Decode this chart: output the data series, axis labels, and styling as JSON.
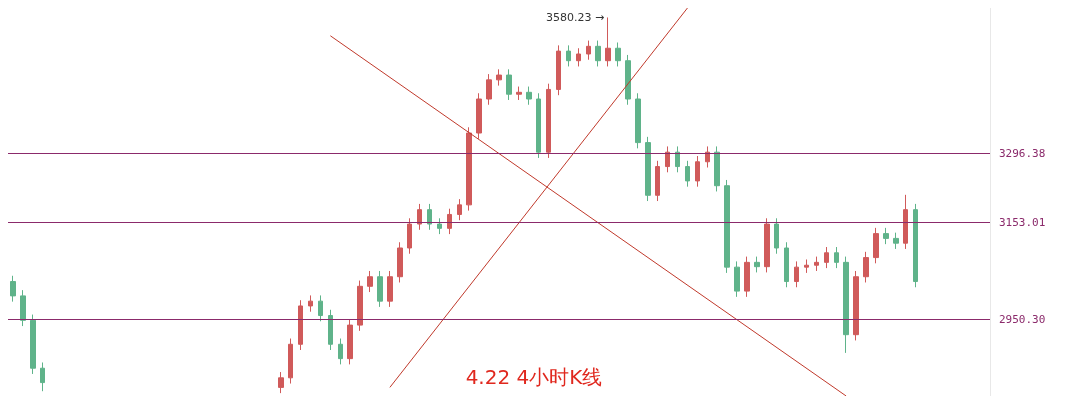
{
  "chart_data": {
    "type": "candlestick",
    "title": "4.22 4小时K线",
    "categories": [
      null,
      null,
      null,
      null,
      null,
      null,
      null,
      null,
      null,
      null,
      null,
      null,
      null,
      null,
      null,
      null,
      null,
      null,
      null,
      null,
      null,
      null,
      null,
      null,
      null,
      null,
      null,
      null,
      null,
      null,
      null,
      null,
      null,
      null,
      null,
      null,
      null,
      null,
      null,
      null,
      null,
      null,
      null,
      null,
      null,
      null,
      null,
      null,
      null,
      null,
      null,
      null,
      null,
      null,
      null,
      null,
      null,
      null,
      null,
      null,
      null,
      null,
      null,
      null,
      null,
      null,
      null,
      null,
      null,
      null,
      null,
      null,
      null,
      null,
      null,
      null,
      null,
      null,
      null,
      null,
      null,
      null,
      null,
      null,
      null,
      null,
      null,
      null,
      null,
      null,
      null,
      null,
      null,
      null,
      null,
      null,
      null,
      null,
      null
    ],
    "ohlc": [
      [
        3029,
        3041,
        2987,
        2999
      ],
      [
        2999,
        3011,
        2936,
        2948
      ],
      [
        2948,
        2960,
        2836,
        2848
      ],
      [
        2848,
        2860,
        2800,
        2818
      ],
      null,
      null,
      null,
      null,
      null,
      null,
      null,
      null,
      null,
      null,
      null,
      null,
      null,
      null,
      null,
      null,
      null,
      null,
      null,
      null,
      null,
      null,
      null,
      [
        2808,
        2840,
        2796,
        2828
      ],
      [
        2828,
        2910,
        2816,
        2898
      ],
      [
        2898,
        2990,
        2886,
        2978
      ],
      [
        2978,
        3000,
        2966,
        2988
      ],
      [
        2988,
        3000,
        2946,
        2958
      ],
      [
        2958,
        2970,
        2886,
        2898
      ],
      [
        2898,
        2910,
        2856,
        2868
      ],
      [
        2868,
        2950,
        2856,
        2938
      ],
      [
        2938,
        3031,
        2926,
        3019
      ],
      [
        3019,
        3051,
        3007,
        3039
      ],
      [
        3039,
        3051,
        2976,
        2988
      ],
      [
        2988,
        3051,
        2976,
        3039
      ],
      [
        3039,
        3111,
        3027,
        3099
      ],
      [
        3099,
        3161,
        3087,
        3149
      ],
      [
        3149,
        3191,
        3137,
        3179
      ],
      [
        3179,
        3191,
        3137,
        3149
      ],
      [
        3149,
        3161,
        3128,
        3140
      ],
      [
        3140,
        3181,
        3128,
        3169
      ],
      [
        3169,
        3201,
        3157,
        3189
      ],
      [
        3189,
        3351,
        3177,
        3339
      ],
      [
        3339,
        3422,
        3327,
        3410
      ],
      [
        3410,
        3462,
        3398,
        3450
      ],
      [
        3450,
        3472,
        3438,
        3460
      ],
      [
        3460,
        3472,
        3408,
        3420
      ],
      [
        3420,
        3436,
        3408,
        3424
      ],
      [
        3424,
        3436,
        3398,
        3410
      ],
      [
        3410,
        3422,
        3287,
        3299
      ],
      [
        3299,
        3442,
        3287,
        3430
      ],
      [
        3430,
        3522,
        3418,
        3510
      ],
      [
        3510,
        3522,
        3478,
        3490
      ],
      [
        3490,
        3516,
        3478,
        3504
      ],
      [
        3504,
        3532,
        3492,
        3520
      ],
      [
        3520,
        3532,
        3478,
        3490
      ],
      [
        3490,
        3580.23,
        3478,
        3516
      ],
      [
        3516,
        3528,
        3478,
        3490
      ],
      [
        3490,
        3502,
        3398,
        3410
      ],
      [
        3410,
        3422,
        3307,
        3319
      ],
      [
        3319,
        3331,
        3197,
        3209
      ],
      [
        3209,
        3281,
        3197,
        3269
      ],
      [
        3269,
        3311,
        3257,
        3299
      ],
      [
        3299,
        3311,
        3257,
        3269
      ],
      [
        3269,
        3281,
        3227,
        3239
      ],
      [
        3239,
        3291,
        3227,
        3279
      ],
      [
        3279,
        3311,
        3267,
        3299
      ],
      [
        3299,
        3311,
        3217,
        3229
      ],
      [
        3229,
        3241,
        3047,
        3059
      ],
      [
        3059,
        3071,
        2997,
        3009
      ],
      [
        3009,
        3081,
        2997,
        3069
      ],
      [
        3069,
        3081,
        3048,
        3060
      ],
      [
        3060,
        3161,
        3048,
        3149
      ],
      [
        3149,
        3161,
        3087,
        3099
      ],
      [
        3099,
        3111,
        3017,
        3029
      ],
      [
        3029,
        3071,
        3017,
        3059
      ],
      [
        3059,
        3075,
        3047,
        3063
      ],
      [
        3063,
        3081,
        3051,
        3069
      ],
      [
        3069,
        3101,
        3057,
        3089
      ],
      [
        3089,
        3101,
        3057,
        3069
      ],
      [
        3069,
        3081,
        2880,
        2918
      ],
      [
        2918,
        3051,
        2906,
        3039
      ],
      [
        3039,
        3091,
        3027,
        3079
      ],
      [
        3079,
        3141,
        3067,
        3129
      ],
      [
        3129,
        3141,
        3107,
        3119
      ],
      [
        3119,
        3131,
        3097,
        3109
      ],
      [
        3109,
        3210,
        3097,
        3179
      ],
      [
        3179,
        3191,
        3017,
        3029
      ],
      null,
      null,
      null,
      null,
      null,
      null,
      null
    ],
    "series": [
      {
        "type": "line",
        "color": "#c0392b",
        "values": [
          null,
          null,
          null,
          null,
          null,
          null,
          null,
          null,
          null,
          null,
          null,
          null,
          null,
          null,
          null,
          null,
          null,
          null,
          null,
          null,
          null,
          null,
          null,
          null,
          null,
          null,
          null,
          null,
          null,
          null,
          null,
          null,
          3542,
          null,
          null,
          null,
          null,
          null,
          null,
          null,
          null,
          null,
          null,
          null,
          null,
          null,
          null,
          null,
          null,
          null,
          null,
          null,
          null,
          null,
          null,
          null,
          null,
          null,
          null,
          null,
          null,
          null,
          null,
          null,
          null,
          null,
          null,
          null,
          null,
          null,
          null,
          null,
          null,
          null,
          null,
          null,
          null,
          null,
          null,
          null,
          null,
          null,
          null,
          null,
          2790,
          null,
          null,
          null,
          null,
          null,
          null,
          null,
          null,
          null,
          null,
          null,
          null,
          null,
          null
        ]
      },
      {
        "type": "line",
        "color": "#c0392b",
        "values": [
          null,
          null,
          null,
          null,
          null,
          null,
          null,
          null,
          null,
          null,
          null,
          null,
          null,
          null,
          null,
          null,
          null,
          null,
          null,
          null,
          null,
          null,
          null,
          null,
          null,
          null,
          null,
          null,
          null,
          null,
          null,
          null,
          null,
          null,
          null,
          null,
          null,
          null,
          2808,
          null,
          null,
          null,
          null,
          null,
          null,
          null,
          null,
          null,
          null,
          null,
          null,
          null,
          null,
          null,
          null,
          null,
          null,
          null,
          null,
          null,
          null,
          null,
          null,
          null,
          null,
          null,
          null,
          null,
          3600,
          null,
          null,
          null,
          null,
          null,
          null,
          null,
          null,
          null,
          null,
          null,
          null,
          null,
          null,
          null,
          null,
          null,
          null,
          null,
          null,
          null,
          null,
          null,
          null,
          null,
          null,
          null,
          null,
          null,
          null
        ]
      }
    ],
    "ylim": [
      2790,
      3600
    ],
    "yticks": [
      {
        "value": 2950.3,
        "label": "2950.30"
      },
      3153.01,
      3296.38
    ],
    "tick_labels": "y",
    "ref_lines": [
      {
        "axis": "y",
        "value": 3296.38,
        "color": "#8b2a6b"
      },
      {
        "axis": "y",
        "value": 3153.01,
        "color": "#8b2a6b"
      },
      {
        "axis": "y",
        "value": 2950.3,
        "color": "#8b2a6b"
      }
    ],
    "annotations": [
      "3580.23 →"
    ]
  }
}
